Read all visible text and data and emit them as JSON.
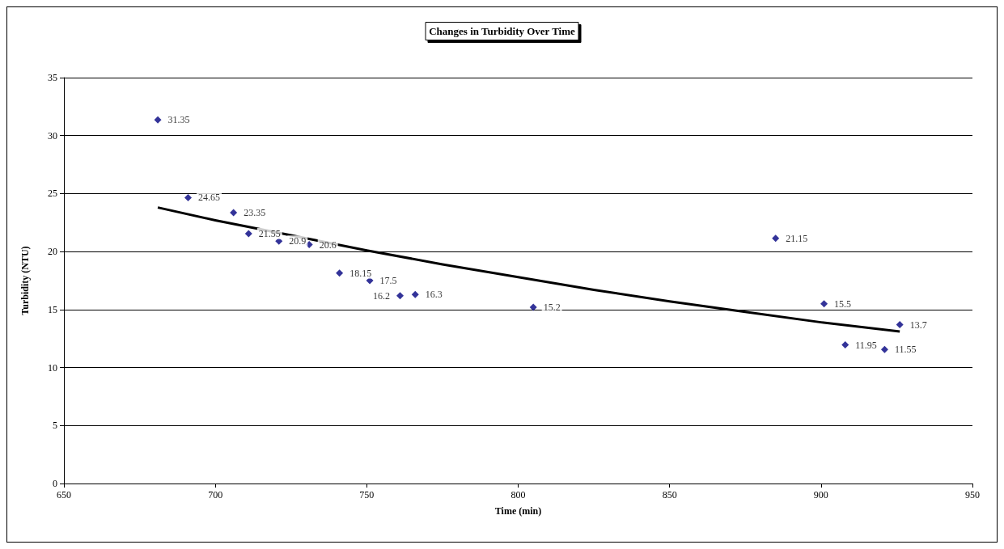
{
  "chart_data": {
    "type": "scatter",
    "title": "Changes in Turbidity Over Time",
    "xlabel": "Time (min)",
    "ylabel": "Turbidity (NTU)",
    "xlim": [
      650,
      950
    ],
    "xticks": [
      650,
      700,
      750,
      800,
      850,
      900,
      950
    ],
    "ylim": [
      0,
      35
    ],
    "yticks": [
      0,
      5,
      10,
      15,
      20,
      25,
      30,
      35
    ],
    "grid": "y",
    "series": [
      {
        "color": "#000080",
        "marker": "diamond",
        "x": [
          681,
          691,
          706,
          711,
          721,
          731,
          741,
          751,
          761,
          766,
          805,
          885,
          901,
          908,
          921,
          926
        ],
        "values": [
          31.35,
          24.65,
          23.35,
          21.55,
          20.9,
          20.6,
          18.15,
          17.5,
          16.2,
          16.3,
          15.2,
          21.15,
          15.5,
          11.95,
          11.55,
          13.7
        ],
        "value_labels": [
          "31.35",
          "24.65",
          "23.35",
          "21.55",
          "20.9",
          "20.6",
          "18.15",
          "17.5",
          "16.2",
          "16.3",
          "15.2",
          "21.15",
          "15.5",
          "11.95",
          "11.55",
          "13.7"
        ]
      },
      {
        "type": "line",
        "color": "#000000",
        "line_style": "solid",
        "marker": "none",
        "x": [
          681,
          700,
          725,
          750,
          775,
          800,
          825,
          850,
          875,
          900,
          926
        ],
        "values": [
          23.8,
          22.7,
          21.4,
          20.1,
          18.9,
          17.8,
          16.7,
          15.7,
          14.8,
          13.9,
          13.1
        ]
      }
    ]
  }
}
